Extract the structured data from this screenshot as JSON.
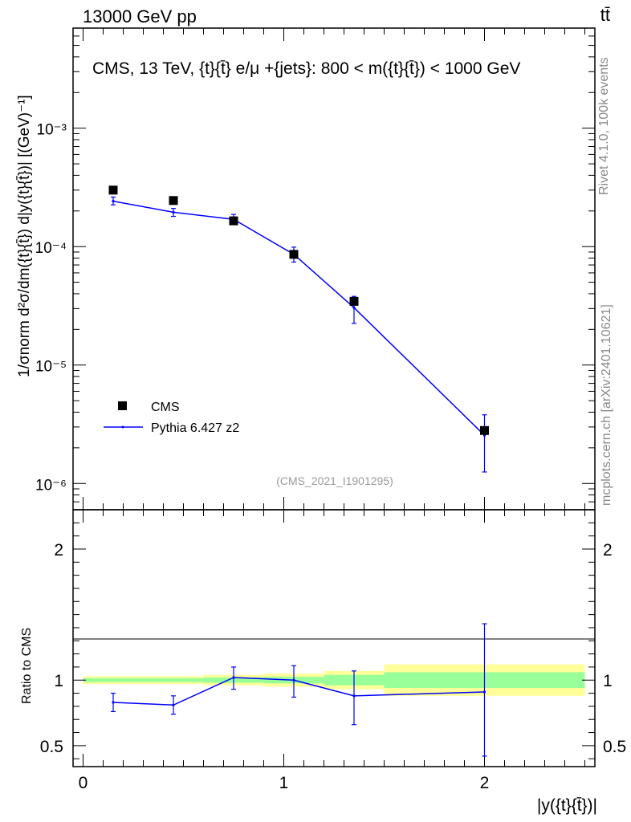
{
  "header": {
    "left": "13000 GeV pp",
    "right": "tt̄"
  },
  "side_labels": {
    "rivet": "Rivet 4.1.0,  100k events",
    "mcplots": "mcplots.cern.ch [arXiv:2401.10621]"
  },
  "chart_data": [
    {
      "type": "scatter",
      "panel": "main",
      "title": "CMS, 13 TeV, {t}{t̄} e/μ +{jets}: 800 < m({t}{t̄}) < 1000 GeV",
      "ylabel": "1/σnorm d²σ/dm({t}{t̄}) d|y({t}{t̄})| [(GeV)⁻¹]",
      "yscale": "log",
      "ylim": [
        6e-07,
        0.007
      ],
      "xlim": [
        -0.05,
        2.55
      ],
      "y_ticks": [
        {
          "value": 1e-06,
          "label": "10⁻⁶"
        },
        {
          "value": 1e-05,
          "label": "10⁻⁵"
        },
        {
          "value": 0.0001,
          "label": "10⁻⁴"
        },
        {
          "value": 0.001,
          "label": "10⁻³"
        }
      ],
      "watermark": "(CMS_2021_I1901295)",
      "legend": {
        "position": "lower-left",
        "entries": [
          "CMS",
          "Pythia 6.427 z2"
        ]
      },
      "series": [
        {
          "name": "CMS",
          "style": "square-marker",
          "x": [
            0.15,
            0.45,
            0.75,
            1.05,
            1.35,
            2.0
          ],
          "y": [
            0.0003,
            0.000245,
            0.000165,
            8.6e-05,
            3.45e-05,
            2.8e-06
          ]
        },
        {
          "name": "Pythia 6.427 z2",
          "style": "line-with-errors",
          "color": "#0000ff",
          "x": [
            0.15,
            0.45,
            0.75,
            1.05,
            1.35,
            2.0
          ],
          "y": [
            0.000242,
            0.000195,
            0.00017,
            8.6e-05,
            3.05e-05,
            2.55e-06
          ],
          "err_low": [
            0.000225,
            0.00018,
            0.000155,
            7.4e-05,
            2.25e-05,
            1.25e-06
          ],
          "err_high": [
            0.000262,
            0.00021,
            0.000187,
            9.9e-05,
            3.8e-05,
            3.8e-06
          ]
        }
      ]
    },
    {
      "type": "line",
      "panel": "ratio",
      "ylabel": "Ratio to CMS",
      "xlabel": "|y({t}{t̄})|",
      "ylim": [
        0.34,
        2.3
      ],
      "xlim": [
        -0.05,
        2.55
      ],
      "x_ticks": [
        {
          "value": 0,
          "label": "0"
        },
        {
          "value": 1,
          "label": "1"
        },
        {
          "value": 2,
          "label": "2"
        }
      ],
      "y_ticks": [
        {
          "value": 0.5,
          "label": "0.5"
        },
        {
          "value": 1,
          "label": "1"
        },
        {
          "value": 2,
          "label": "2"
        }
      ],
      "uncertainty_bands": [
        {
          "x0": 0.0,
          "x1": 0.3,
          "inner": [
            0.985,
            1.015
          ],
          "outer": [
            0.97,
            1.03
          ]
        },
        {
          "x0": 0.3,
          "x1": 0.6,
          "inner": [
            0.985,
            1.015
          ],
          "outer": [
            0.97,
            1.03
          ]
        },
        {
          "x0": 0.6,
          "x1": 0.9,
          "inner": [
            0.98,
            1.02
          ],
          "outer": [
            0.96,
            1.04
          ]
        },
        {
          "x0": 0.9,
          "x1": 1.2,
          "inner": [
            0.975,
            1.025
          ],
          "outer": [
            0.95,
            1.05
          ]
        },
        {
          "x0": 1.2,
          "x1": 1.5,
          "inner": [
            0.96,
            1.04
          ],
          "outer": [
            0.93,
            1.07
          ]
        },
        {
          "x0": 1.5,
          "x1": 2.5,
          "inner": [
            0.94,
            1.06
          ],
          "outer": [
            0.88,
            1.12
          ]
        }
      ],
      "series": [
        {
          "name": "Pythia 6.427 z2",
          "color": "#0000ff",
          "x": [
            0.15,
            0.45,
            0.75,
            1.05,
            1.35,
            2.0
          ],
          "y": [
            0.83,
            0.81,
            1.02,
            1.0,
            0.88,
            0.91
          ],
          "err_low": [
            0.76,
            0.74,
            0.93,
            0.87,
            0.66,
            0.42
          ],
          "err_high": [
            0.9,
            0.88,
            1.1,
            1.11,
            1.07,
            1.43
          ]
        }
      ]
    }
  ]
}
